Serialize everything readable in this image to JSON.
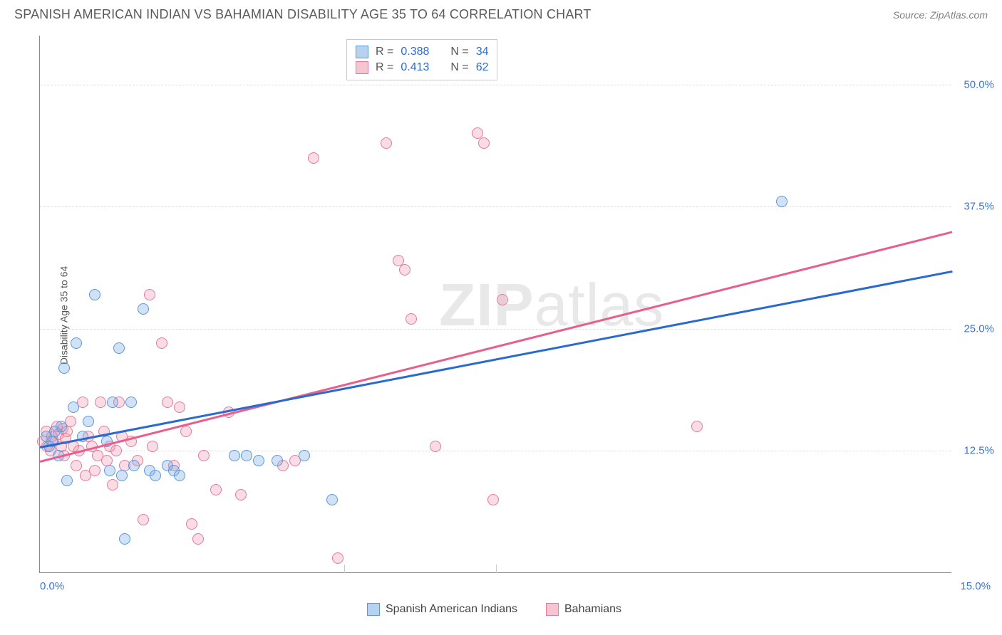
{
  "header": {
    "title": "SPANISH AMERICAN INDIAN VS BAHAMIAN DISABILITY AGE 35 TO 64 CORRELATION CHART",
    "source_prefix": "Source: ",
    "source_name": "ZipAtlas.com"
  },
  "chart": {
    "type": "scatter",
    "ylabel": "Disability Age 35 to 64",
    "xlim": [
      0,
      15
    ],
    "ylim": [
      0,
      55
    ],
    "x_ticks": [
      {
        "v": 0,
        "label": "0.0%"
      },
      {
        "v": 15,
        "label": "15.0%"
      }
    ],
    "y_ticks": [
      {
        "v": 12.5,
        "label": "12.5%"
      },
      {
        "v": 25.0,
        "label": "25.0%"
      },
      {
        "v": 37.5,
        "label": "37.5%"
      },
      {
        "v": 50.0,
        "label": "50.0%"
      }
    ],
    "x_minor_ticks": [
      5.0,
      7.5
    ],
    "background_color": "#ffffff",
    "grid_color": "#dddddd",
    "colors": {
      "blue": "#5b98d8",
      "pink": "#e85f8b",
      "blue_line": "#2a6ad0",
      "pink_line": "#e85f8b"
    },
    "legend_stats": [
      {
        "series": "blue",
        "R": "0.388",
        "N": "34"
      },
      {
        "series": "pink",
        "R": "0.413",
        "N": "62"
      }
    ],
    "legend_bottom": [
      {
        "series": "blue",
        "label": "Spanish American Indians"
      },
      {
        "series": "pink",
        "label": "Bahamians"
      }
    ],
    "trend_lines": {
      "blue": {
        "x1": 0,
        "y1": 13.0,
        "x2": 15,
        "y2": 31.0
      },
      "pink": {
        "x1": 0,
        "y1": 11.5,
        "x2": 15,
        "y2": 35.0
      }
    },
    "series_blue": [
      {
        "x": 0.1,
        "y": 14.0
      },
      {
        "x": 0.15,
        "y": 13.0
      },
      {
        "x": 0.2,
        "y": 13.5
      },
      {
        "x": 0.25,
        "y": 14.5
      },
      {
        "x": 0.3,
        "y": 12.0
      },
      {
        "x": 0.35,
        "y": 15.0
      },
      {
        "x": 0.4,
        "y": 21.0
      },
      {
        "x": 0.45,
        "y": 9.5
      },
      {
        "x": 0.55,
        "y": 17.0
      },
      {
        "x": 0.6,
        "y": 23.5
      },
      {
        "x": 0.7,
        "y": 14.0
      },
      {
        "x": 0.8,
        "y": 15.5
      },
      {
        "x": 0.9,
        "y": 28.5
      },
      {
        "x": 1.1,
        "y": 13.5
      },
      {
        "x": 1.15,
        "y": 10.5
      },
      {
        "x": 1.2,
        "y": 17.5
      },
      {
        "x": 1.3,
        "y": 23.0
      },
      {
        "x": 1.35,
        "y": 10.0
      },
      {
        "x": 1.4,
        "y": 3.5
      },
      {
        "x": 1.5,
        "y": 17.5
      },
      {
        "x": 1.55,
        "y": 11.0
      },
      {
        "x": 1.7,
        "y": 27.0
      },
      {
        "x": 1.8,
        "y": 10.5
      },
      {
        "x": 1.9,
        "y": 10.0
      },
      {
        "x": 2.1,
        "y": 11.0
      },
      {
        "x": 2.2,
        "y": 10.5
      },
      {
        "x": 2.3,
        "y": 10.0
      },
      {
        "x": 3.2,
        "y": 12.0
      },
      {
        "x": 3.4,
        "y": 12.0
      },
      {
        "x": 3.6,
        "y": 11.5
      },
      {
        "x": 3.9,
        "y": 11.5
      },
      {
        "x": 4.8,
        "y": 7.5
      },
      {
        "x": 4.35,
        "y": 12.0
      },
      {
        "x": 12.2,
        "y": 38.0
      }
    ],
    "series_pink": [
      {
        "x": 0.05,
        "y": 13.5
      },
      {
        "x": 0.1,
        "y": 14.5
      },
      {
        "x": 0.12,
        "y": 13.0
      },
      {
        "x": 0.18,
        "y": 12.5
      },
      {
        "x": 0.2,
        "y": 14.0
      },
      {
        "x": 0.22,
        "y": 13.5
      },
      {
        "x": 0.28,
        "y": 15.0
      },
      {
        "x": 0.3,
        "y": 14.2
      },
      {
        "x": 0.35,
        "y": 13.0
      },
      {
        "x": 0.38,
        "y": 14.8
      },
      {
        "x": 0.4,
        "y": 12.0
      },
      {
        "x": 0.42,
        "y": 13.8
      },
      {
        "x": 0.45,
        "y": 14.5
      },
      {
        "x": 0.5,
        "y": 15.5
      },
      {
        "x": 0.55,
        "y": 13.0
      },
      {
        "x": 0.6,
        "y": 11.0
      },
      {
        "x": 0.65,
        "y": 12.5
      },
      {
        "x": 0.7,
        "y": 17.5
      },
      {
        "x": 0.75,
        "y": 10.0
      },
      {
        "x": 0.8,
        "y": 14.0
      },
      {
        "x": 0.85,
        "y": 13.0
      },
      {
        "x": 0.9,
        "y": 10.5
      },
      {
        "x": 0.95,
        "y": 12.0
      },
      {
        "x": 1.0,
        "y": 17.5
      },
      {
        "x": 1.05,
        "y": 14.5
      },
      {
        "x": 1.1,
        "y": 11.5
      },
      {
        "x": 1.15,
        "y": 13.0
      },
      {
        "x": 1.2,
        "y": 9.0
      },
      {
        "x": 1.25,
        "y": 12.5
      },
      {
        "x": 1.3,
        "y": 17.5
      },
      {
        "x": 1.35,
        "y": 14.0
      },
      {
        "x": 1.4,
        "y": 11.0
      },
      {
        "x": 1.5,
        "y": 13.5
      },
      {
        "x": 1.6,
        "y": 11.5
      },
      {
        "x": 1.7,
        "y": 5.5
      },
      {
        "x": 1.8,
        "y": 28.5
      },
      {
        "x": 1.85,
        "y": 13.0
      },
      {
        "x": 2.0,
        "y": 23.5
      },
      {
        "x": 2.1,
        "y": 17.5
      },
      {
        "x": 2.2,
        "y": 11.0
      },
      {
        "x": 2.3,
        "y": 17.0
      },
      {
        "x": 2.4,
        "y": 14.5
      },
      {
        "x": 2.5,
        "y": 5.0
      },
      {
        "x": 2.6,
        "y": 3.5
      },
      {
        "x": 2.7,
        "y": 12.0
      },
      {
        "x": 2.9,
        "y": 8.5
      },
      {
        "x": 3.1,
        "y": 16.5
      },
      {
        "x": 3.3,
        "y": 8.0
      },
      {
        "x": 4.0,
        "y": 11.0
      },
      {
        "x": 4.2,
        "y": 11.5
      },
      {
        "x": 4.5,
        "y": 42.5
      },
      {
        "x": 4.9,
        "y": 1.5
      },
      {
        "x": 5.7,
        "y": 44.0
      },
      {
        "x": 5.9,
        "y": 32.0
      },
      {
        "x": 6.0,
        "y": 31.0
      },
      {
        "x": 6.1,
        "y": 26.0
      },
      {
        "x": 6.5,
        "y": 13.0
      },
      {
        "x": 7.2,
        "y": 45.0
      },
      {
        "x": 7.3,
        "y": 44.0
      },
      {
        "x": 7.45,
        "y": 7.5
      },
      {
        "x": 7.6,
        "y": 28.0
      },
      {
        "x": 10.8,
        "y": 15.0
      }
    ],
    "watermark": {
      "zip": "ZIP",
      "atlas": "atlas"
    }
  }
}
